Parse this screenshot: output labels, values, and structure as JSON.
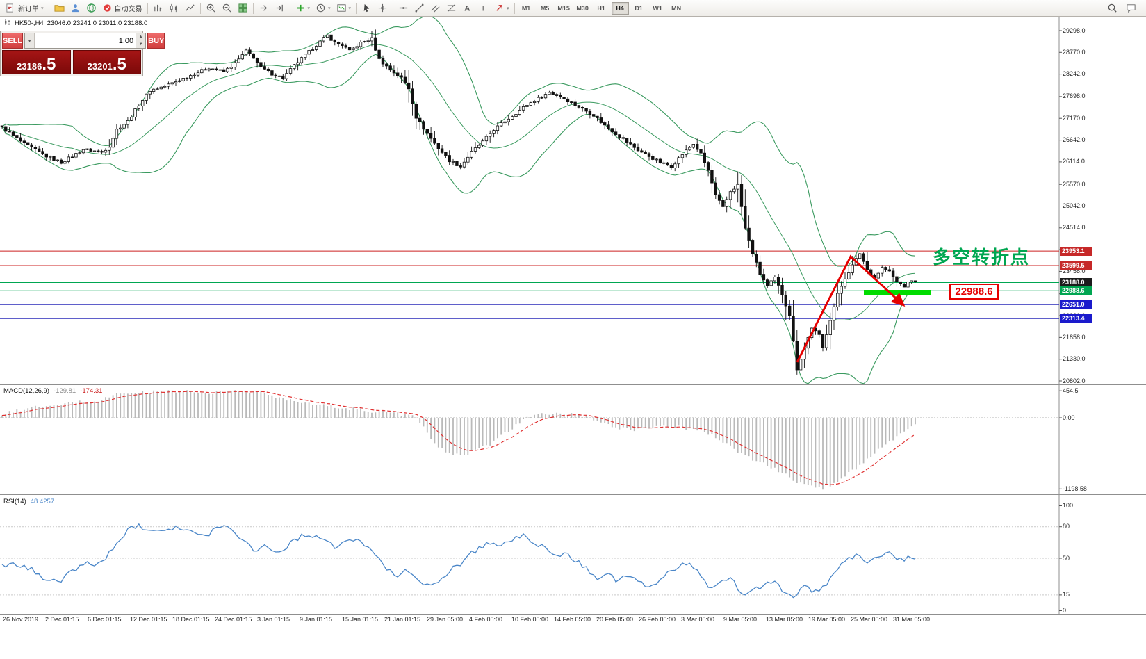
{
  "toolbar": {
    "groups": [
      {
        "items": [
          {
            "icon": "new-order",
            "label": "新订单",
            "caret": true
          }
        ]
      },
      {
        "items": [
          {
            "icon": "folder"
          },
          {
            "icon": "user"
          },
          {
            "icon": "globe"
          },
          {
            "icon": "autotrade",
            "label": "自动交易"
          }
        ]
      },
      {
        "items": [
          {
            "icon": "bar-chart"
          },
          {
            "icon": "candle-chart"
          },
          {
            "icon": "line-chart"
          }
        ]
      },
      {
        "items": [
          {
            "icon": "zoom-in"
          },
          {
            "icon": "zoom-out"
          },
          {
            "icon": "tile-windows"
          }
        ]
      },
      {
        "items": [
          {
            "icon": "auto-scroll"
          },
          {
            "icon": "chart-shift"
          }
        ]
      },
      {
        "items": [
          {
            "icon": "indicators",
            "caret": true
          },
          {
            "icon": "periods",
            "caret": true
          },
          {
            "icon": "template",
            "caret": true
          }
        ]
      },
      {
        "items": [
          {
            "icon": "cursor"
          },
          {
            "icon": "crosshair"
          }
        ]
      },
      {
        "items": [
          {
            "icon": "horizontal-line"
          },
          {
            "icon": "trendline"
          },
          {
            "icon": "equidistant-channel"
          },
          {
            "icon": "fibonacci"
          },
          {
            "icon": "text"
          },
          {
            "icon": "text-label"
          },
          {
            "icon": "arrows",
            "caret": true
          }
        ]
      },
      {
        "timeframes": [
          "M1",
          "M5",
          "M15",
          "M30",
          "H1",
          "H4",
          "D1",
          "W1",
          "MN"
        ],
        "active": "H4"
      }
    ],
    "right_icons": [
      "search",
      "chat"
    ]
  },
  "symbol_info": {
    "symbol": "HK50-,H4",
    "ohlc": "23046.0 23241.0 23011.0 23188.0"
  },
  "trade_panel": {
    "sell_label": "SELL",
    "buy_label": "BUY",
    "volume": "1.00",
    "sell_price": {
      "small": "23186",
      "big": ".5"
    },
    "buy_price": {
      "small": "23201",
      "big": ".5"
    }
  },
  "annotations": {
    "turning_point_text": "多空转折点",
    "price_callout": "22988.6",
    "accent_green": "#00a651",
    "accent_red": "#e60000",
    "support_bar_color": "#00dc00"
  },
  "macd": {
    "name": "MACD(12,26,9)",
    "value_main": "-129.81",
    "value_signal": "-174.31",
    "axis_labels": [
      {
        "text": "454.5",
        "value": 454.5
      },
      {
        "text": "0.00",
        "value": 0
      },
      {
        "text": "-1198.58",
        "value": -1198.58
      }
    ]
  },
  "rsi": {
    "name": "RSI(14)",
    "value": "48.4257",
    "axis_labels": [
      {
        "text": "100",
        "value": 100
      },
      {
        "text": "80",
        "value": 80
      },
      {
        "text": "50",
        "value": 50
      },
      {
        "text": "15",
        "value": 15
      },
      {
        "text": "0",
        "value": 0
      }
    ],
    "levels": [
      80,
      50,
      15
    ]
  },
  "price_axis": {
    "ticks": [
      29298.0,
      28770.0,
      28242.0,
      27698.0,
      27170.0,
      26642.0,
      26114.0,
      25570.0,
      25042.0,
      24514.0,
      23986.0,
      23458.0,
      22914.0,
      22386.0,
      21858.0,
      21330.0,
      20802.0
    ],
    "special_labels": [
      {
        "text": "23953.1",
        "price": 23953.1,
        "bg": "#c62828"
      },
      {
        "text": "23599.5",
        "price": 23599.5,
        "bg": "#c62828"
      },
      {
        "text": "23188.0",
        "price": 23188.0,
        "bg": "#1c1c1c"
      },
      {
        "text": "22988.6",
        "price": 22988.6,
        "bg": "#00a651"
      },
      {
        "text": "22651.0",
        "price": 22651.0,
        "bg": "#1a1acc"
      },
      {
        "text": "22313.4",
        "price": 22313.4,
        "bg": "#1a1acc"
      }
    ]
  },
  "date_axis": [
    "26 Nov 2019",
    "2 Dec 01:15",
    "6 Dec 01:15",
    "12 Dec 01:15",
    "18 Dec 01:15",
    "24 Dec 01:15",
    "3 Jan 01:15",
    "9 Jan 01:15",
    "15 Jan 01:15",
    "21 Jan 01:15",
    "29 Jan 05:00",
    "4 Feb 05:00",
    "10 Feb 05:00",
    "14 Feb 05:00",
    "20 Feb 05:00",
    "26 Feb 05:00",
    "3 Mar 05:00",
    "9 Mar 05:00",
    "13 Mar 05:00",
    "19 Mar 05:00",
    "25 Mar 05:00",
    "31 Mar 05:00"
  ],
  "chart_data": {
    "type": "candlestick",
    "symbol": "HK50",
    "timeframe": "H4",
    "price_range": [
      20802.0,
      29298.0
    ],
    "candles_count": 248,
    "bollinger_color": "#3a9a5f",
    "price_anchors": [
      [
        0,
        26950
      ],
      [
        3,
        26750
      ],
      [
        6,
        26550
      ],
      [
        9,
        26400
      ],
      [
        12,
        26250
      ],
      [
        16,
        26100
      ],
      [
        19,
        26250
      ],
      [
        22,
        26420
      ],
      [
        25,
        26380
      ],
      [
        27,
        26350
      ],
      [
        29,
        26500
      ],
      [
        31,
        26900
      ],
      [
        34,
        27100
      ],
      [
        37,
        27500
      ],
      [
        40,
        27850
      ],
      [
        44,
        27950
      ],
      [
        48,
        28100
      ],
      [
        52,
        28250
      ],
      [
        56,
        28400
      ],
      [
        60,
        28300
      ],
      [
        63,
        28500
      ],
      [
        66,
        28800
      ],
      [
        68,
        28650
      ],
      [
        70,
        28400
      ],
      [
        73,
        28250
      ],
      [
        76,
        28150
      ],
      [
        79,
        28450
      ],
      [
        82,
        28700
      ],
      [
        85,
        28950
      ],
      [
        88,
        29180
      ],
      [
        90,
        29000
      ],
      [
        92,
        28950
      ],
      [
        94,
        28800
      ],
      [
        97,
        29000
      ],
      [
        100,
        29100
      ],
      [
        102,
        28600
      ],
      [
        105,
        28350
      ],
      [
        108,
        28150
      ],
      [
        110,
        27900
      ],
      [
        112,
        27200
      ],
      [
        115,
        26800
      ],
      [
        118,
        26450
      ],
      [
        121,
        26150
      ],
      [
        124,
        26000
      ],
      [
        127,
        26350
      ],
      [
        130,
        26600
      ],
      [
        133,
        26900
      ],
      [
        136,
        27100
      ],
      [
        139,
        27300
      ],
      [
        142,
        27500
      ],
      [
        145,
        27650
      ],
      [
        148,
        27800
      ],
      [
        151,
        27700
      ],
      [
        154,
        27550
      ],
      [
        157,
        27400
      ],
      [
        160,
        27250
      ],
      [
        163,
        27000
      ],
      [
        166,
        26800
      ],
      [
        169,
        26600
      ],
      [
        172,
        26400
      ],
      [
        175,
        26250
      ],
      [
        178,
        26100
      ],
      [
        181,
        26000
      ],
      [
        184,
        26300
      ],
      [
        187,
        26550
      ],
      [
        189,
        26300
      ],
      [
        191,
        25900
      ],
      [
        193,
        25300
      ],
      [
        195,
        25000
      ],
      [
        197,
        25400
      ],
      [
        199,
        25550
      ],
      [
        201,
        24500
      ],
      [
        203,
        23900
      ],
      [
        205,
        23400
      ],
      [
        207,
        23100
      ],
      [
        209,
        23300
      ],
      [
        211,
        22900
      ],
      [
        213,
        22400
      ],
      [
        215,
        21100
      ],
      [
        217,
        21600
      ],
      [
        219,
        22100
      ],
      [
        221,
        21900
      ],
      [
        222,
        21600
      ],
      [
        224,
        22300
      ],
      [
        226,
        22900
      ],
      [
        228,
        23300
      ],
      [
        230,
        23600
      ],
      [
        232,
        23900
      ],
      [
        234,
        23500
      ],
      [
        236,
        23300
      ],
      [
        238,
        23550
      ],
      [
        240,
        23450
      ],
      [
        242,
        23200
      ],
      [
        244,
        23100
      ],
      [
        246,
        23250
      ],
      [
        247,
        23188
      ]
    ],
    "hlines": [
      {
        "price": 23953.1,
        "color": "#cc2020"
      },
      {
        "price": 23599.5,
        "color": "#cc2020"
      },
      {
        "price": 23188.0,
        "color": "#00a651"
      },
      {
        "price": 22988.6,
        "color": "#00a651"
      },
      {
        "price": 22651.0,
        "color": "#2a2ab8"
      },
      {
        "price": 22313.4,
        "color": "#2a2ab8"
      }
    ],
    "macd": {
      "range": [
        -1198.58,
        454.5
      ],
      "anchors": [
        [
          0,
          60
        ],
        [
          4,
          120
        ],
        [
          8,
          175
        ],
        [
          15,
          200
        ],
        [
          19,
          265
        ],
        [
          26,
          280
        ],
        [
          30,
          390
        ],
        [
          38,
          430
        ],
        [
          45,
          450
        ],
        [
          49,
          445
        ],
        [
          53,
          430
        ],
        [
          56,
          400
        ],
        [
          60,
          440
        ],
        [
          64,
          450
        ],
        [
          68,
          440
        ],
        [
          71,
          420
        ],
        [
          75,
          330
        ],
        [
          79,
          305
        ],
        [
          83,
          240
        ],
        [
          87,
          210
        ],
        [
          92,
          160
        ],
        [
          96,
          150
        ],
        [
          100,
          110
        ],
        [
          104,
          100
        ],
        [
          108,
          60
        ],
        [
          111,
          35
        ],
        [
          113,
          -80
        ],
        [
          115,
          -250
        ],
        [
          117,
          -450
        ],
        [
          120,
          -570
        ],
        [
          123,
          -630
        ],
        [
          126,
          -600
        ],
        [
          129,
          -480
        ],
        [
          132,
          -460
        ],
        [
          135,
          -300
        ],
        [
          137,
          -225
        ],
        [
          140,
          -80
        ],
        [
          143,
          20
        ],
        [
          146,
          60
        ],
        [
          150,
          70
        ],
        [
          154,
          60
        ],
        [
          158,
          20
        ],
        [
          160,
          -40
        ],
        [
          163,
          -105
        ],
        [
          167,
          -170
        ],
        [
          171,
          -200
        ],
        [
          175,
          -160
        ],
        [
          179,
          -140
        ],
        [
          183,
          -160
        ],
        [
          187,
          -200
        ],
        [
          190,
          -225
        ],
        [
          193,
          -340
        ],
        [
          196,
          -420
        ],
        [
          199,
          -575
        ],
        [
          203,
          -700
        ],
        [
          207,
          -800
        ],
        [
          211,
          -930
        ],
        [
          215,
          -1080
        ],
        [
          219,
          -1165
        ],
        [
          222,
          -1190
        ],
        [
          225,
          -1100
        ],
        [
          228,
          -980
        ],
        [
          231,
          -850
        ],
        [
          234,
          -690
        ],
        [
          237,
          -550
        ],
        [
          240,
          -420
        ],
        [
          243,
          -280
        ],
        [
          245,
          -180
        ],
        [
          247,
          -130
        ]
      ]
    },
    "rsi": {
      "range": [
        0,
        100
      ],
      "anchors": [
        [
          0,
          42
        ],
        [
          4,
          44
        ],
        [
          8,
          39
        ],
        [
          11,
          32
        ],
        [
          15,
          29
        ],
        [
          16,
          27
        ],
        [
          19,
          39
        ],
        [
          23,
          45
        ],
        [
          26,
          44
        ],
        [
          30,
          58
        ],
        [
          34,
          78
        ],
        [
          36,
          81
        ],
        [
          39,
          79
        ],
        [
          43,
          77
        ],
        [
          47,
          80
        ],
        [
          51,
          75
        ],
        [
          55,
          70
        ],
        [
          58,
          81
        ],
        [
          62,
          79
        ],
        [
          65,
          68
        ],
        [
          68,
          58
        ],
        [
          71,
          62
        ],
        [
          75,
          55
        ],
        [
          79,
          68
        ],
        [
          83,
          73
        ],
        [
          86,
          70
        ],
        [
          90,
          60
        ],
        [
          94,
          68
        ],
        [
          98,
          64
        ],
        [
          102,
          52
        ],
        [
          104,
          39
        ],
        [
          107,
          33
        ],
        [
          110,
          39
        ],
        [
          113,
          29
        ],
        [
          116,
          22
        ],
        [
          118,
          26
        ],
        [
          121,
          39
        ],
        [
          124,
          45
        ],
        [
          127,
          55
        ],
        [
          130,
          62
        ],
        [
          132,
          65
        ],
        [
          135,
          62
        ],
        [
          138,
          68
        ],
        [
          141,
          71
        ],
        [
          144,
          66
        ],
        [
          147,
          58
        ],
        [
          149,
          52
        ],
        [
          152,
          55
        ],
        [
          155,
          48
        ],
        [
          158,
          40
        ],
        [
          161,
          32
        ],
        [
          164,
          36
        ],
        [
          166,
          29
        ],
        [
          169,
          33
        ],
        [
          172,
          27
        ],
        [
          175,
          22
        ],
        [
          178,
          29
        ],
        [
          180,
          36
        ],
        [
          183,
          42
        ],
        [
          186,
          47
        ],
        [
          189,
          32
        ],
        [
          192,
          20
        ],
        [
          195,
          27
        ],
        [
          197,
          32
        ],
        [
          200,
          16
        ],
        [
          203,
          19
        ],
        [
          206,
          24
        ],
        [
          209,
          27
        ],
        [
          211,
          20
        ],
        [
          214,
          14
        ],
        [
          217,
          22
        ],
        [
          220,
          18
        ],
        [
          223,
          24
        ],
        [
          226,
          39
        ],
        [
          228,
          48
        ],
        [
          231,
          53
        ],
        [
          234,
          47
        ],
        [
          237,
          52
        ],
        [
          240,
          55
        ],
        [
          243,
          48
        ],
        [
          245,
          50
        ],
        [
          247,
          48.4
        ]
      ]
    }
  }
}
